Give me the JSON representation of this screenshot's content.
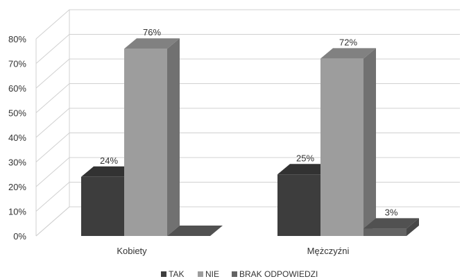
{
  "chart_data": {
    "type": "bar",
    "categories": [
      "Kobiety",
      "Mężczyźni"
    ],
    "series": [
      {
        "name": "TAK",
        "values": [
          24,
          25
        ],
        "color": "#3d3d3d",
        "labels": [
          "24%",
          "25%"
        ]
      },
      {
        "name": "NIE",
        "values": [
          76,
          72
        ],
        "color": "#9d9d9d",
        "labels": [
          "76%",
          "72%"
        ]
      },
      {
        "name": "BRAK ODPOWIEDZI",
        "values": [
          0,
          3
        ],
        "color": "#636363",
        "labels": [
          "",
          "3%"
        ]
      }
    ],
    "ylim": [
      0,
      80
    ],
    "yticks": [
      "0%",
      "10%",
      "20%",
      "30%",
      "40%",
      "50%",
      "60%",
      "70%",
      "80%"
    ],
    "grid": true,
    "legend_position": "bottom",
    "three_d": true
  }
}
